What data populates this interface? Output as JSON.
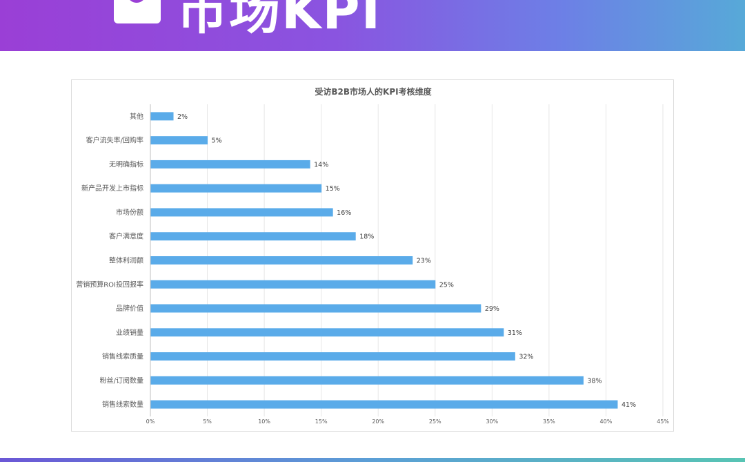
{
  "banner": {
    "title": "市场KPI",
    "icon": "document-icon",
    "gradient": [
      "#9a3fd6",
      "#57a9d8"
    ]
  },
  "chart_data": {
    "type": "bar",
    "orientation": "horizontal",
    "title": "受访B2B市场人的KPI考核维度",
    "categories": [
      "其他",
      "客户流失率/回购率",
      "无明确指标",
      "新产品开发上市指标",
      "市场份额",
      "客户满意度",
      "整体利润额",
      "营销预算ROI投回报率",
      "品牌价值",
      "业绩销量",
      "销售线索质量",
      "粉丝/订阅数量",
      "销售线索数量"
    ],
    "values": [
      2,
      5,
      14,
      15,
      16,
      18,
      23,
      25,
      29,
      31,
      32,
      38,
      41
    ],
    "value_labels": [
      "2%",
      "5%",
      "14%",
      "15%",
      "16%",
      "18%",
      "23%",
      "25%",
      "29%",
      "31%",
      "32%",
      "38%",
      "41%"
    ],
    "xlim": [
      0,
      45
    ],
    "xticks": [
      0,
      5,
      10,
      15,
      20,
      25,
      30,
      35,
      40,
      45
    ],
    "xtick_labels": [
      "0%",
      "5%",
      "10%",
      "15%",
      "20%",
      "25%",
      "30%",
      "35%",
      "40%",
      "45%"
    ],
    "bar_color": "#5aabe9",
    "grid": true
  }
}
